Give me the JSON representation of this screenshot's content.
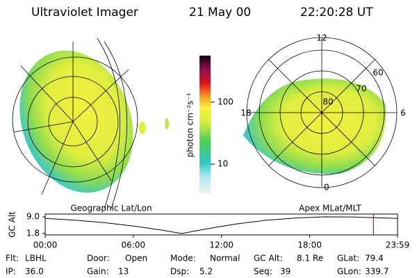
{
  "header": {
    "title": "Ultraviolet Imager",
    "date": "21 May 00",
    "time": "22:20:28 UT"
  },
  "left_map": {
    "label": "Geographic Lat/Lon"
  },
  "right_map": {
    "label": "Apex MLat/MLT",
    "hours": [
      "12",
      "18",
      "6",
      "0"
    ],
    "latitudes": [
      "80",
      "70",
      "60"
    ]
  },
  "colorbar": {
    "label": "photon cm⁻²s⁻¹",
    "lim": [
      3.4,
      560
    ],
    "ticks": [
      10,
      100
    ]
  },
  "altitude_plot": {
    "ylabel": "GC Alt",
    "ylim": [
      1.8,
      9.0
    ],
    "yticks": [
      {
        "value": 9.0,
        "label": "9.0"
      },
      {
        "value": 1.8,
        "label": "1.8"
      }
    ],
    "xlim": [
      0,
      23.98
    ],
    "xticks": [
      {
        "value": 0,
        "label": "00:00"
      },
      {
        "value": 6,
        "label": "06:00"
      },
      {
        "value": 12,
        "label": "12:00"
      },
      {
        "value": 18,
        "label": "18:00"
      },
      {
        "value": 23.98,
        "label": "23:59"
      }
    ],
    "x": [
      0,
      2,
      4,
      6,
      8,
      9.3,
      11,
      13,
      15,
      17,
      19,
      21,
      23.98
    ],
    "values": [
      8.3,
      7.6,
      6.5,
      5.0,
      3.2,
      1.8,
      3.8,
      5.9,
      7.5,
      8.5,
      9.0,
      8.9,
      8.3
    ],
    "current_x": 22.34,
    "current_color": "#e00000"
  },
  "footer": {
    "rows": [
      [
        {
          "label": "Flt:",
          "value": "LBHL"
        },
        {
          "label": "Door:",
          "value": "Open"
        },
        {
          "label": "Mode:",
          "value": "Normal"
        },
        {
          "label": "GC Alt:",
          "value": "8.1 Re"
        },
        {
          "label": "GLat:",
          "value": "79.4"
        }
      ],
      [
        {
          "label": "IP:",
          "value": "36.0"
        },
        {
          "label": "Gain:",
          "value": "13"
        },
        {
          "label": "Dsp:",
          "value": "5.2"
        },
        {
          "label": "Seq:",
          "value": "39"
        },
        {
          "label": "GLon:",
          "value": "339.7"
        }
      ]
    ]
  }
}
